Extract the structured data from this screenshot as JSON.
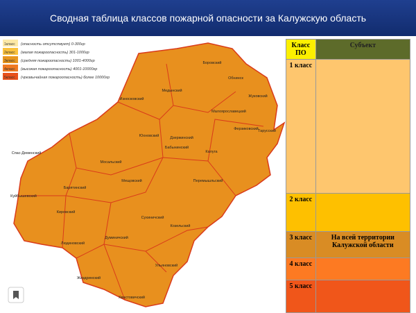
{
  "header": {
    "title": "Сводная таблица классов пожарной опасности за Калужскую область"
  },
  "legend": [
    {
      "swatch": "1класс",
      "label": "(опасность отсутствует) 0-300гр",
      "color": "#fde9a6"
    },
    {
      "swatch": "2класс",
      "label": "(малая пожароопасность) 301-1000гр",
      "color": "#fbc23c"
    },
    {
      "swatch": "3класс",
      "label": "(средняя пожароопасность) 1001-4000гр",
      "color": "#e8961e"
    },
    {
      "swatch": "4класс",
      "label": "(высокая пожароопасность) 4001-10000гр",
      "color": "#f07a22"
    },
    {
      "swatch": "5класс",
      "label": "(чрезвычайная пожароопасность) более 10000гр",
      "color": "#e8501c"
    }
  ],
  "map": {
    "districts": [
      "Боровский",
      "Обнинск",
      "Медынский",
      "Жуковский",
      "Износковский",
      "Малоярославецкий",
      "Тарусский",
      "Ферзиковский",
      "Юхновский",
      "Дзержинский",
      "Бабынинский",
      "Калуга",
      "Спас-Деменский",
      "Мосальский",
      "Перемышльский",
      "Куйбышевский",
      "Барятинский",
      "Мещовский",
      "Кировский",
      "Сухиничский",
      "Козельский",
      "Людиновский",
      "Думиничский",
      "Жиздринский",
      "Ульяновский",
      "Хвастовичский"
    ]
  },
  "table": {
    "header": [
      "Класс ПО",
      "Субъект"
    ],
    "rows": [
      [
        "1 класс"
      ],
      [
        "2 класс"
      ],
      [
        "3 класс",
        "На всей территории Калужской области"
      ],
      [
        "4 класс"
      ],
      [
        "5 класс"
      ]
    ]
  }
}
